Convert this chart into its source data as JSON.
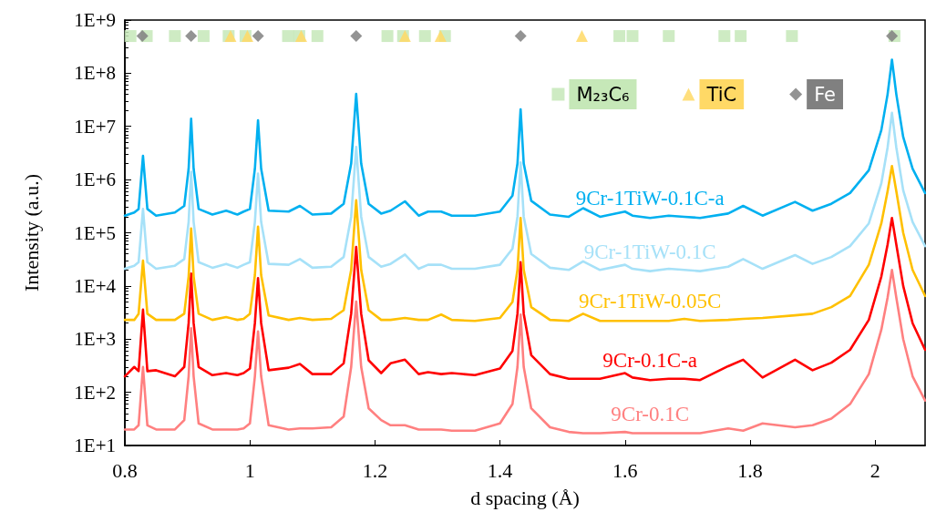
{
  "chart_data": {
    "type": "line",
    "xlabel": "d spacing (Å)",
    "ylabel": "Intensity (a.u.)",
    "x": [
      0.8,
      0.815,
      0.822,
      0.829,
      0.836,
      0.85,
      0.88,
      0.895,
      0.902,
      0.906,
      0.91,
      0.918,
      0.94,
      0.962,
      0.98,
      0.99,
      1.0,
      1.008,
      1.013,
      1.018,
      1.03,
      1.062,
      1.08,
      1.1,
      1.13,
      1.15,
      1.162,
      1.17,
      1.178,
      1.19,
      1.21,
      1.225,
      1.248,
      1.27,
      1.285,
      1.306,
      1.323,
      1.36,
      1.4,
      1.42,
      1.428,
      1.433,
      1.438,
      1.45,
      1.48,
      1.51,
      1.533,
      1.56,
      1.6,
      1.612,
      1.64,
      1.67,
      1.695,
      1.72,
      1.765,
      1.789,
      1.82,
      1.872,
      1.9,
      1.93,
      1.96,
      1.99,
      2.01,
      2.02,
      2.027,
      2.034,
      2.045,
      2.06,
      2.08
    ],
    "series": [
      {
        "name": "9Cr-1TiW-0.1C-a",
        "color": "#00b0f0",
        "values": [
          210000.0,
          240000.0,
          280000.0,
          2800000.0,
          280000.0,
          210000.0,
          240000.0,
          320000.0,
          1600000.0,
          14000000.0,
          1600000.0,
          280000.0,
          220000.0,
          260000.0,
          220000.0,
          250000.0,
          280000.0,
          1600000.0,
          13000000.0,
          1600000.0,
          260000.0,
          250000.0,
          320000.0,
          220000.0,
          230000.0,
          350000.0,
          2000000.0,
          41000000.0,
          2000000.0,
          350000.0,
          230000.0,
          260000.0,
          390000.0,
          210000.0,
          250000.0,
          250000.0,
          210000.0,
          210000.0,
          250000.0,
          500000.0,
          2000000.0,
          21000000.0,
          2000000.0,
          400000.0,
          220000.0,
          200000.0,
          290000.0,
          200000.0,
          250000.0,
          210000.0,
          190000.0,
          210000.0,
          200000.0,
          190000.0,
          230000.0,
          320000.0,
          210000.0,
          380000.0,
          260000.0,
          350000.0,
          560000.0,
          1500000.0,
          8500000.0,
          40000000.0,
          180000000.0,
          40000000.0,
          6300000.0,
          1600000.0,
          560000.0
        ]
      },
      {
        "name": "9Cr-1TiW-0.1C",
        "color": "#a6e1f8",
        "values": [
          21000.0,
          24000.0,
          28000.0,
          280000.0,
          28000.0,
          21000.0,
          24000.0,
          32000.0,
          160000.0,
          1400000.0,
          160000.0,
          28000.0,
          22000.0,
          26000.0,
          22000.0,
          25000.0,
          28000.0,
          160000.0,
          1300000.0,
          160000.0,
          26000.0,
          25000.0,
          32000.0,
          22000.0,
          23000.0,
          35000.0,
          200000.0,
          4100000.0,
          200000.0,
          35000.0,
          23000.0,
          26000.0,
          39000.0,
          21000.0,
          25000.0,
          25000.0,
          21000.0,
          21000.0,
          25000.0,
          50000.0,
          200000.0,
          2100000.0,
          200000.0,
          40000.0,
          22000.0,
          20000.0,
          29000.0,
          20000.0,
          25000.0,
          21000.0,
          19000.0,
          21000.0,
          20000.0,
          19000.0,
          23000.0,
          32000.0,
          21000.0,
          38000.0,
          26000.0,
          35000.0,
          56000.0,
          150000.0,
          850000.0,
          4000000.0,
          18000000.0,
          4000000.0,
          630000.0,
          160000.0,
          56000.0
        ]
      },
      {
        "name": "9Cr-1TiW-0.05C",
        "color": "#ffc000",
        "values": [
          2300.0,
          2300.0,
          3000.0,
          30000.0,
          3000.0,
          2300.0,
          2300.0,
          3000.0,
          15000.0,
          120000.0,
          15000.0,
          3000.0,
          2300.0,
          2600.0,
          2300.0,
          2400.0,
          3000.0,
          16000.0,
          130000.0,
          16000.0,
          2800.0,
          2300.0,
          2500.0,
          2300.0,
          2400.0,
          3500.0,
          20000.0,
          410000.0,
          20000.0,
          3500.0,
          2300.0,
          2300.0,
          2500.0,
          2300.0,
          2300.0,
          2900.0,
          2300.0,
          2200.0,
          2500.0,
          5000.0,
          20000.0,
          190000.0,
          20000.0,
          4000.0,
          2300.0,
          2200.0,
          3000.0,
          2200.0,
          2200.0,
          2200.0,
          2200.0,
          2200.0,
          2400.0,
          2200.0,
          2300.0,
          2400.0,
          2500.0,
          2800.0,
          3000.0,
          4000.0,
          6500.0,
          25000.0,
          150000.0,
          600000.0,
          1800000.0,
          600000.0,
          100000.0,
          20000.0,
          6500.0
        ]
      },
      {
        "name": "9Cr-0.1C-a",
        "color": "#ff0000",
        "values": [
          200.0,
          300.0,
          250.0,
          3600.0,
          250.0,
          260.0,
          200.0,
          300.0,
          2000.0,
          17000.0,
          2000.0,
          300.0,
          210.0,
          230.0,
          210.0,
          230.0,
          280.0,
          2000.0,
          14000.0,
          2000.0,
          260.0,
          290.0,
          340.0,
          220.0,
          220.0,
          350.0,
          3000.0,
          54000.0,
          3000.0,
          400.0,
          230.0,
          350.0,
          410.0,
          220.0,
          240.0,
          220.0,
          230.0,
          210.0,
          280.0,
          600.0,
          3000.0,
          28000.0,
          3000.0,
          500.0,
          220.0,
          180.0,
          180.0,
          180.0,
          230.0,
          190.0,
          170.0,
          180.0,
          180.0,
          170.0,
          310.0,
          410.0,
          190.0,
          410.0,
          260.0,
          360.0,
          630.0,
          2300.0,
          15000.0,
          60000.0,
          190000.0,
          60000.0,
          10000.0,
          2000.0,
          630.0
        ]
      },
      {
        "name": "9Cr-0.1C",
        "color": "#ff8080",
        "values": [
          20.0,
          20.0,
          24.0,
          300.0,
          24.0,
          20.0,
          20.0,
          30.0,
          200.0,
          1600.0,
          200.0,
          26.0,
          20.0,
          20.0,
          20.0,
          21.0,
          26.0,
          200.0,
          1400.0,
          200.0,
          24.0,
          20.0,
          21.0,
          21.0,
          22.0,
          35.0,
          300.0,
          5100.0,
          300.0,
          50.0,
          30.0,
          24.0,
          24.0,
          20.0,
          20.0,
          20.0,
          19.0,
          19.0,
          26.0,
          60.0,
          300.0,
          2900.0,
          300.0,
          50.0,
          22.0,
          18.0,
          17.0,
          17.0,
          18.0,
          17.0,
          17.0,
          17.0,
          17.0,
          17.0,
          21.0,
          19.0,
          26.0,
          22.0,
          24.0,
          32.0,
          60.0,
          220.0,
          1500.0,
          6000.0,
          20000.0,
          6000.0,
          1000.0,
          200.0,
          70.0
        ]
      },
      {
        "name": "M₂₃C₆",
        "type": "scatter",
        "marker": "square",
        "color": "#c6e8b8",
        "x": [
          0.809,
          0.835,
          0.88,
          0.926,
          0.966,
          0.993,
          1.061,
          1.079,
          1.108,
          1.22,
          1.245,
          1.28,
          1.312,
          1.591,
          1.612,
          1.67,
          1.759,
          1.785,
          1.867,
          2.031
        ],
        "values": [
          500000000.0,
          500000000.0,
          500000000.0,
          500000000.0,
          500000000.0,
          500000000.0,
          500000000.0,
          500000000.0,
          500000000.0,
          500000000.0,
          500000000.0,
          500000000.0,
          500000000.0,
          500000000.0,
          500000000.0,
          500000000.0,
          500000000.0,
          500000000.0,
          500000000.0,
          500000000.0
        ]
      },
      {
        "name": "TiC",
        "type": "scatter",
        "marker": "triangle",
        "color": "#ffd966",
        "x": [
          0.969,
          0.996,
          1.082,
          1.248,
          1.305,
          1.531
        ],
        "values": [
          500000000.0,
          500000000.0,
          500000000.0,
          500000000.0,
          500000000.0,
          500000000.0
        ]
      },
      {
        "name": "Fe",
        "type": "scatter",
        "marker": "diamond",
        "color": "#808080",
        "x": [
          0.828,
          0.906,
          1.013,
          1.17,
          1.433,
          2.027
        ],
        "values": [
          500000000.0,
          500000000.0,
          500000000.0,
          500000000.0,
          500000000.0,
          500000000.0
        ]
      }
    ],
    "marker": "none",
    "line_style": "solid",
    "log": "y",
    "legend": "top right",
    "xlim": [
      0.8,
      2.08
    ],
    "xticks": [
      0.8,
      1,
      1.2,
      1.4,
      1.6,
      1.8,
      2
    ],
    "ylim": [
      10,
      1000000000.0
    ],
    "yticks": [
      {
        "value": 10,
        "label": "1E+1"
      },
      {
        "value": 100,
        "label": "1E+2"
      },
      {
        "value": 1000,
        "label": "1E+3"
      },
      {
        "value": 10000,
        "label": "1E+4"
      },
      {
        "value": 100000,
        "label": "1E+5"
      },
      {
        "value": 1000000,
        "label": "1E+6"
      },
      {
        "value": 10000000,
        "label": "1E+7"
      },
      {
        "value": 100000000,
        "label": "1E+8"
      },
      {
        "value": 1000000000,
        "label": "1E+9"
      }
    ]
  }
}
